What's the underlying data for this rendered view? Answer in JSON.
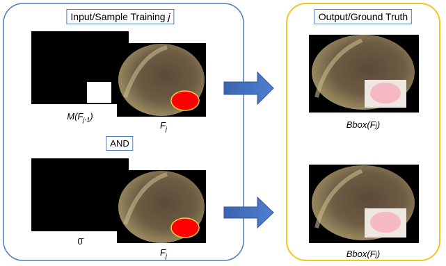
{
  "left_panel": {
    "title": {
      "text": "Input/Sample Training",
      "var": "j"
    },
    "rows": [
      {
        "mask_label": {
          "main": "M(F",
          "sub": "j-1",
          "tail": ")"
        },
        "frame_label": {
          "main": "F",
          "sub": "j"
        }
      },
      {
        "mask_label": {
          "main": "0̄"
        },
        "frame_label": {
          "main": "F",
          "sub": "j"
        }
      }
    ],
    "operator": "AND"
  },
  "right_panel": {
    "title": "Output/Ground Truth",
    "rows": [
      {
        "label": {
          "main": "Bbox(F",
          "sub": "j",
          "tail": ")"
        }
      },
      {
        "label": {
          "main": "Bbox(F",
          "sub": "j",
          "tail": ")"
        }
      }
    ]
  }
}
